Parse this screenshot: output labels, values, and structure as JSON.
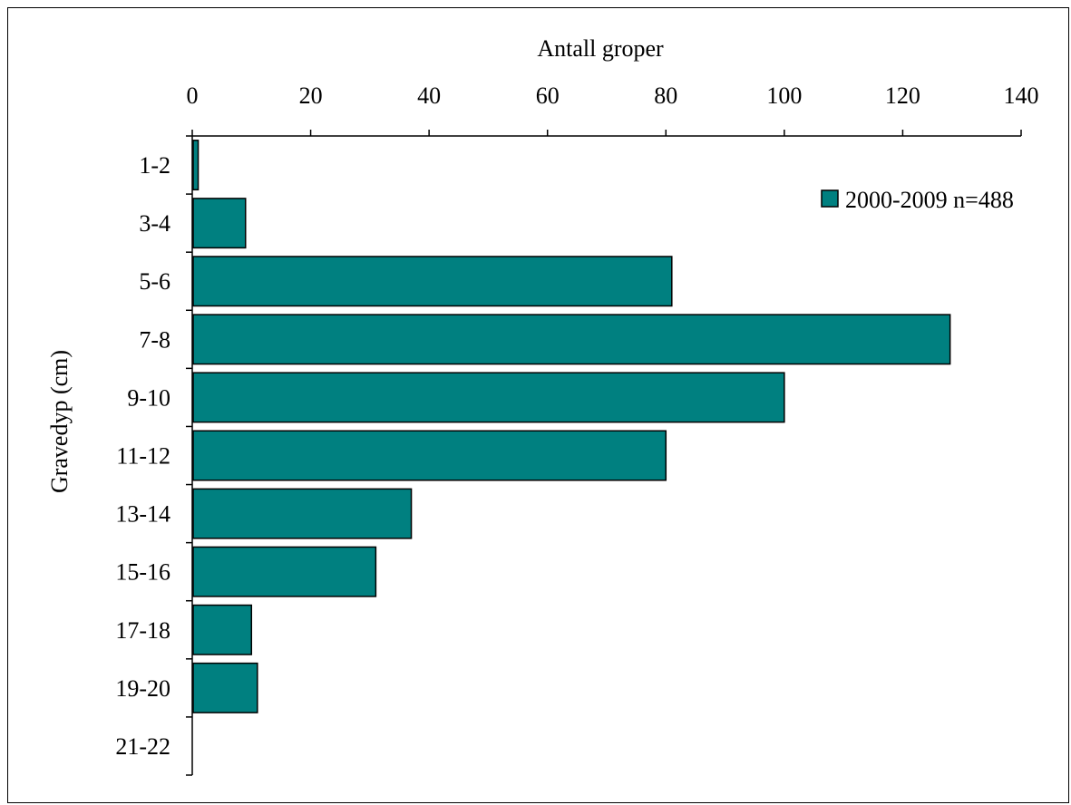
{
  "chart_data": {
    "type": "bar",
    "orientation": "horizontal",
    "title": "",
    "xlabel": "Antall groper",
    "ylabel": "Gravedyp (cm)",
    "xlim": [
      0,
      140
    ],
    "x_ticks": [
      "0",
      "20",
      "40",
      "60",
      "80",
      "100",
      "120",
      "140"
    ],
    "x_axis_position": "top",
    "categories": [
      "1-2",
      "3-4",
      "5-6",
      "7-8",
      "9-10",
      "11-12",
      "13-14",
      "15-16",
      "17-18",
      "19-20",
      "21-22"
    ],
    "series": [
      {
        "name": "2000-2009 n=488",
        "values": [
          1,
          9,
          81,
          128,
          100,
          80,
          37,
          31,
          10,
          11,
          0
        ],
        "color": "#008080"
      }
    ],
    "grid": false,
    "legend": "top-right"
  }
}
